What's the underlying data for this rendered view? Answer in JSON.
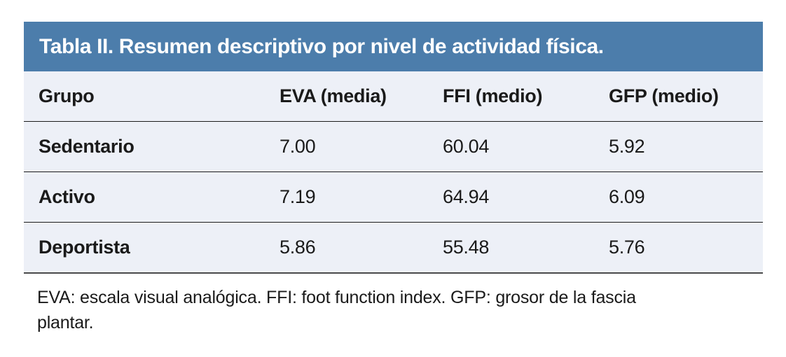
{
  "colors": {
    "title_bar_bg": "#4c7dab",
    "title_text": "#ffffff",
    "row_bg": "#edf0f7",
    "line": "#1c1c1c",
    "bottom_border": "#4a4a4a",
    "text": "#1a1a1a",
    "page_bg": "#ffffff"
  },
  "table": {
    "title": "Tabla II. Resumen descriptivo por nivel de actividad física.",
    "columns": [
      "Grupo",
      "EVA (media)",
      "FFI (medio)",
      "GFP (medio)"
    ],
    "rows": [
      {
        "grupo": "Sedentario",
        "eva": "7.00",
        "ffi": "60.04",
        "gfp": "5.92"
      },
      {
        "grupo": "Activo",
        "eva": "7.19",
        "ffi": "64.94",
        "gfp": "6.09"
      },
      {
        "grupo": "Deportista",
        "eva": "5.86",
        "ffi": "55.48",
        "gfp": "5.76"
      }
    ],
    "footnote": {
      "line1": "EVA: escala visual analógica. FFI: foot function index. GFP: grosor de la fascia",
      "line2": "plantar."
    }
  }
}
